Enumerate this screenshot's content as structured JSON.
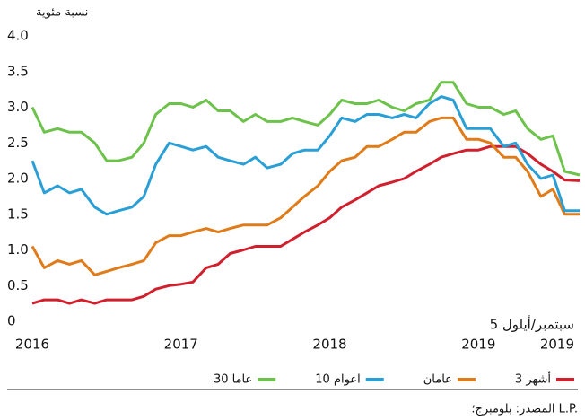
{
  "chart_data": {
    "type": "line",
    "y_axis_label": "نسبة مئوية",
    "annotations": [
      "5 سبتمبر/أيلول",
      "2019"
    ],
    "source": "المصدر: بلومبرج؛ L.P.",
    "x": [
      2016,
      2016.08,
      2016.17,
      2016.25,
      2016.33,
      2016.42,
      2016.5,
      2016.58,
      2016.67,
      2016.75,
      2016.83,
      2016.92,
      2017,
      2017.08,
      2017.17,
      2017.25,
      2017.33,
      2017.42,
      2017.5,
      2017.58,
      2017.67,
      2017.75,
      2017.83,
      2017.92,
      2018,
      2018.08,
      2018.17,
      2018.25,
      2018.33,
      2018.42,
      2018.5,
      2018.58,
      2018.67,
      2018.75,
      2018.83,
      2018.92,
      2019,
      2019.08,
      2019.17,
      2019.25,
      2019.33,
      2019.42,
      2019.5,
      2019.58,
      2019.68
    ],
    "xlim": [
      2016,
      2019.68
    ],
    "xticks": [
      2016,
      2017,
      2018,
      2019
    ],
    "ylim": [
      0,
      4
    ],
    "yticks": [
      0,
      0.5,
      {
        "value": 1,
        "label": "1.0"
      },
      1.5,
      {
        "value": 2,
        "label": "2.0"
      },
      2.5,
      {
        "value": 3,
        "label": "3.0"
      },
      3.5,
      {
        "value": 4,
        "label": "4.0"
      }
    ],
    "grid": false,
    "legend": "bottom",
    "series": [
      {
        "name": "3 أشهر",
        "color": "#d0202e",
        "values": [
          0.25,
          0.3,
          0.3,
          0.25,
          0.3,
          0.25,
          0.3,
          0.3,
          0.3,
          0.35,
          0.45,
          0.5,
          0.52,
          0.55,
          0.75,
          0.8,
          0.95,
          1.0,
          1.05,
          1.05,
          1.05,
          1.15,
          1.25,
          1.35,
          1.45,
          1.6,
          1.7,
          1.8,
          1.9,
          1.95,
          2.0,
          2.1,
          2.2,
          2.3,
          2.35,
          2.4,
          2.4,
          2.45,
          2.45,
          2.45,
          2.35,
          2.2,
          2.1,
          1.98,
          1.97
        ]
      },
      {
        "name": "عامان",
        "color": "#e07b1a",
        "values": [
          1.05,
          0.75,
          0.85,
          0.8,
          0.85,
          0.65,
          0.7,
          0.75,
          0.8,
          0.85,
          1.1,
          1.2,
          1.2,
          1.25,
          1.3,
          1.25,
          1.3,
          1.35,
          1.35,
          1.35,
          1.45,
          1.6,
          1.75,
          1.9,
          2.1,
          2.25,
          2.3,
          2.45,
          2.45,
          2.55,
          2.65,
          2.65,
          2.8,
          2.85,
          2.85,
          2.55,
          2.55,
          2.5,
          2.3,
          2.3,
          2.1,
          1.75,
          1.85,
          1.5,
          1.5
        ]
      },
      {
        "name": "10 اعوام",
        "color": "#2a9fd6",
        "values": [
          2.25,
          1.8,
          1.9,
          1.8,
          1.85,
          1.6,
          1.5,
          1.55,
          1.6,
          1.75,
          2.2,
          2.5,
          2.45,
          2.4,
          2.45,
          2.3,
          2.25,
          2.2,
          2.3,
          2.15,
          2.2,
          2.35,
          2.4,
          2.4,
          2.6,
          2.85,
          2.8,
          2.9,
          2.9,
          2.85,
          2.9,
          2.85,
          3.05,
          3.15,
          3.1,
          2.7,
          2.7,
          2.7,
          2.45,
          2.5,
          2.2,
          2.0,
          2.05,
          1.55,
          1.55
        ]
      },
      {
        "name": "30 عاما",
        "color": "#6cc24a",
        "values": [
          3.0,
          2.65,
          2.7,
          2.65,
          2.65,
          2.5,
          2.25,
          2.25,
          2.3,
          2.5,
          2.9,
          3.05,
          3.05,
          3.0,
          3.1,
          2.95,
          2.95,
          2.8,
          2.9,
          2.8,
          2.8,
          2.85,
          2.8,
          2.75,
          2.9,
          3.1,
          3.05,
          3.05,
          3.1,
          3.0,
          2.95,
          3.05,
          3.1,
          3.35,
          3.35,
          3.05,
          3.0,
          3.0,
          2.9,
          2.95,
          2.7,
          2.55,
          2.6,
          2.1,
          2.05
        ]
      }
    ]
  }
}
